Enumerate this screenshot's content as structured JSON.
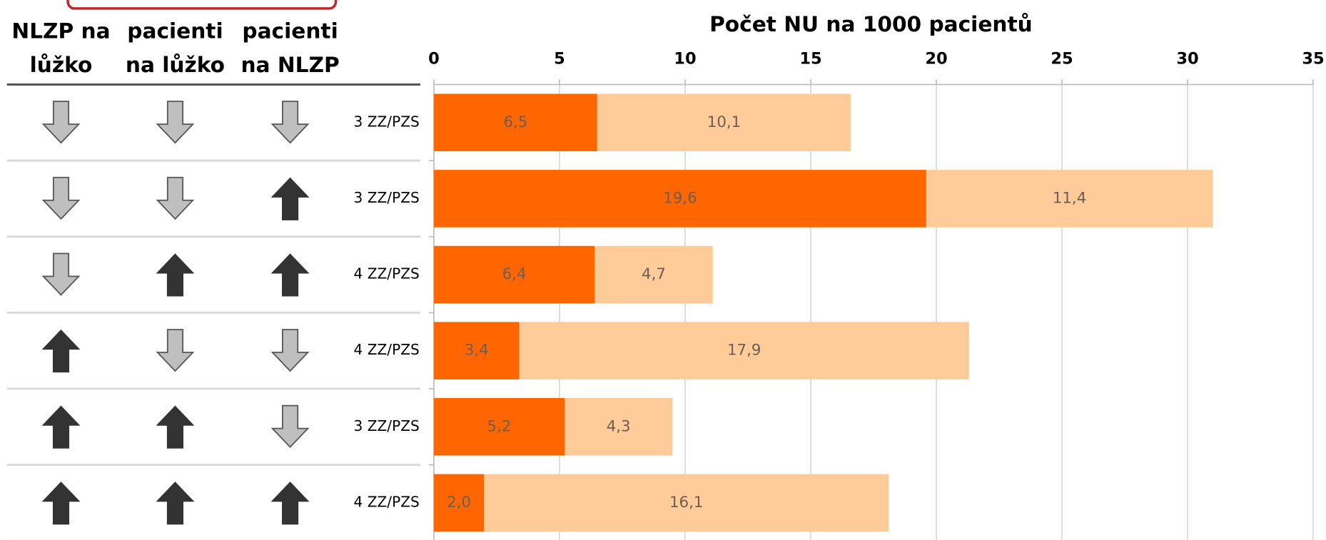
{
  "chart_data": {
    "type": "stacked_bar",
    "title": "Počet NU na 1000 pacientů",
    "columns": [
      [
        "NLZP na",
        "lůžko"
      ],
      [
        "pacienti",
        "na lůžko"
      ],
      [
        "pacienti",
        "na NLZP"
      ]
    ],
    "arrows": [
      [
        "down",
        "down",
        "down"
      ],
      [
        "down",
        "down",
        "up"
      ],
      [
        "down",
        "up",
        "up"
      ],
      [
        "up",
        "down",
        "down"
      ],
      [
        "up",
        "up",
        "down"
      ],
      [
        "up",
        "up",
        "up"
      ]
    ],
    "categories": [
      "3 ZZ/PZS",
      "3 ZZ/PZS",
      "4 ZZ/PZS",
      "4 ZZ/PZS",
      "3 ZZ/PZS",
      "4 ZZ/PZS"
    ],
    "series": [
      {
        "color": "#ff6600",
        "values": [
          6.5,
          19.6,
          6.4,
          3.4,
          5.2,
          2.0
        ],
        "value_labels": [
          "6,5",
          "19,6",
          "6,4",
          "3,4",
          "5,2",
          "2,0"
        ]
      },
      {
        "color": "#ffcc99",
        "values": [
          10.1,
          11.4,
          4.7,
          17.9,
          4.3,
          16.1
        ],
        "value_labels": [
          "10,1",
          "11,4",
          "4,7",
          "17,9",
          "4,3",
          "16,1"
        ]
      }
    ],
    "xlim": [
      0,
      35
    ],
    "xticks": [
      0,
      5,
      10,
      15,
      20,
      25,
      30,
      35
    ],
    "grid": true
  }
}
